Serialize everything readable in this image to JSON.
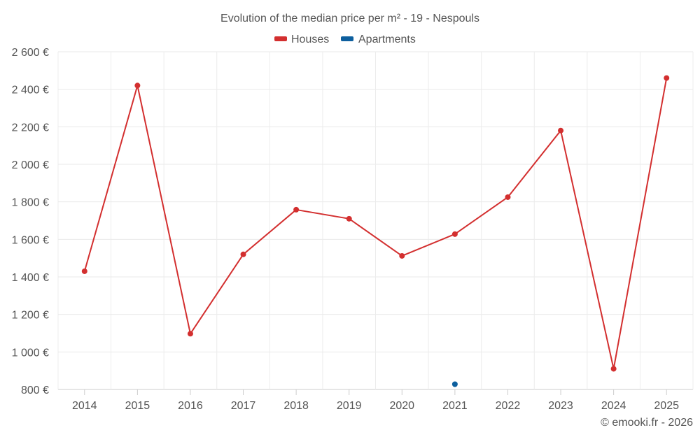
{
  "chart_data": {
    "type": "line",
    "title": "Evolution of the median price per m² - 19 - Nespouls",
    "credit": "© emooki.fr - 2026",
    "categories": [
      "2014",
      "2015",
      "2016",
      "2017",
      "2018",
      "2019",
      "2020",
      "2021",
      "2022",
      "2023",
      "2024",
      "2025"
    ],
    "ylim": [
      800,
      2600
    ],
    "yticks": [
      800,
      1000,
      1200,
      1400,
      1600,
      1800,
      2000,
      2200,
      2400,
      2600
    ],
    "ytick_labels": [
      "800 €",
      "1 000 €",
      "1 200 €",
      "1 400 €",
      "1 600 €",
      "1 800 €",
      "2 000 €",
      "2 200 €",
      "2 400 €",
      "2 600 €"
    ],
    "legend_position": "top-center",
    "grid": true,
    "series": [
      {
        "name": "Houses",
        "color": "#d32f2f",
        "values": [
          1430,
          2420,
          1097,
          1520,
          1758,
          1710,
          1512,
          1628,
          1825,
          2180,
          910,
          2460
        ]
      },
      {
        "name": "Apartments",
        "color": "#0d5f9e",
        "values": [
          null,
          null,
          null,
          null,
          null,
          null,
          null,
          828,
          null,
          null,
          null,
          null
        ]
      }
    ]
  }
}
